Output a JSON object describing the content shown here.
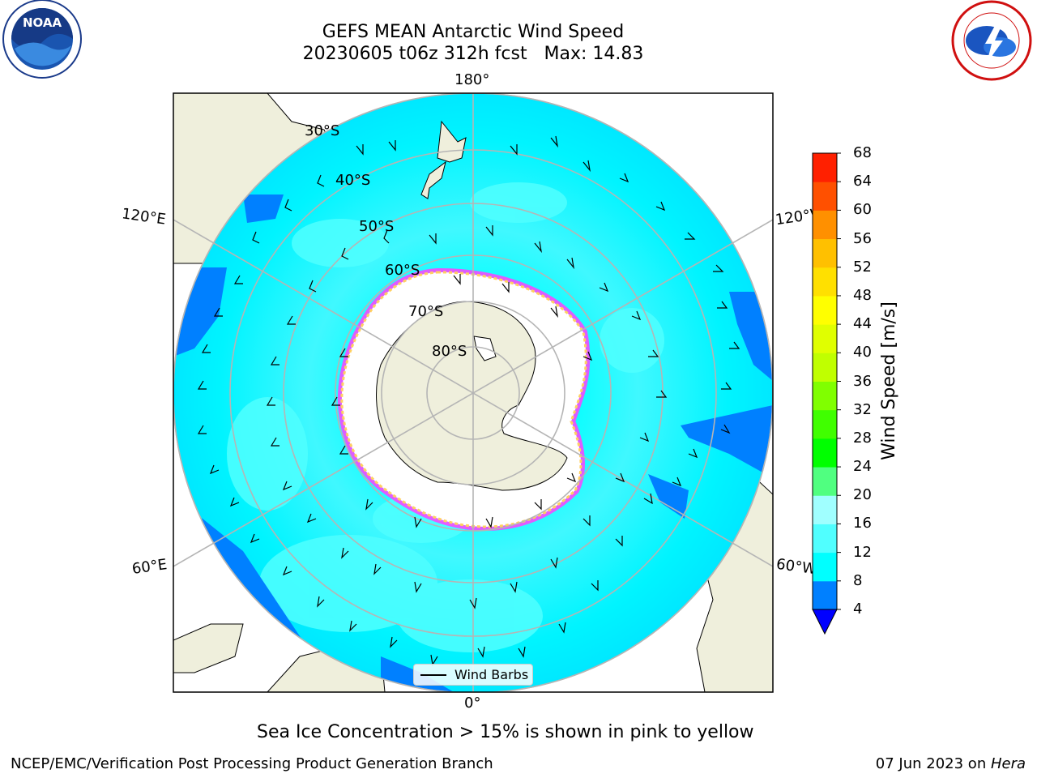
{
  "title": {
    "line1": "GEFS MEAN Antarctic Wind Speed",
    "line2": "20230605 t06z 312h fcst   Max: 14.83"
  },
  "longitude_labels": {
    "top": "180°",
    "bottom": "0°",
    "upper_left": "120°E",
    "upper_right": "120°W",
    "lower_left": "60°E",
    "lower_right": "60°W"
  },
  "latitude_labels": [
    "30°S",
    "40°S",
    "50°S",
    "60°S",
    "70°S",
    "80°S"
  ],
  "colorbar": {
    "label": "Wind Speed [m/s]",
    "ticks": [
      "68",
      "64",
      "60",
      "56",
      "52",
      "48",
      "44",
      "40",
      "36",
      "32",
      "28",
      "24",
      "20",
      "16",
      "12",
      "8",
      "4"
    ],
    "colors": [
      "#0000ff",
      "#0080ff",
      "#00ffff",
      "#50ffff",
      "#a0ffff",
      "#50ff80",
      "#00ff00",
      "#40ff00",
      "#80ff00",
      "#c0ff00",
      "#e0ff00",
      "#ffff00",
      "#ffe000",
      "#ffc000",
      "#ff9000",
      "#ff5000",
      "#ff2000",
      "#ff0000"
    ]
  },
  "legend": {
    "label": "Wind Barbs"
  },
  "caption": "Sea Ice Concentration > 15% is shown in pink to yellow",
  "footer": {
    "left": "NCEP/EMC/Verification Post Processing Product Generation Branch",
    "right_date": "07 Jun 2023 on ",
    "right_machine": "Hera"
  },
  "logos": {
    "left": "noaa-logo",
    "right": "nws-logo"
  }
}
